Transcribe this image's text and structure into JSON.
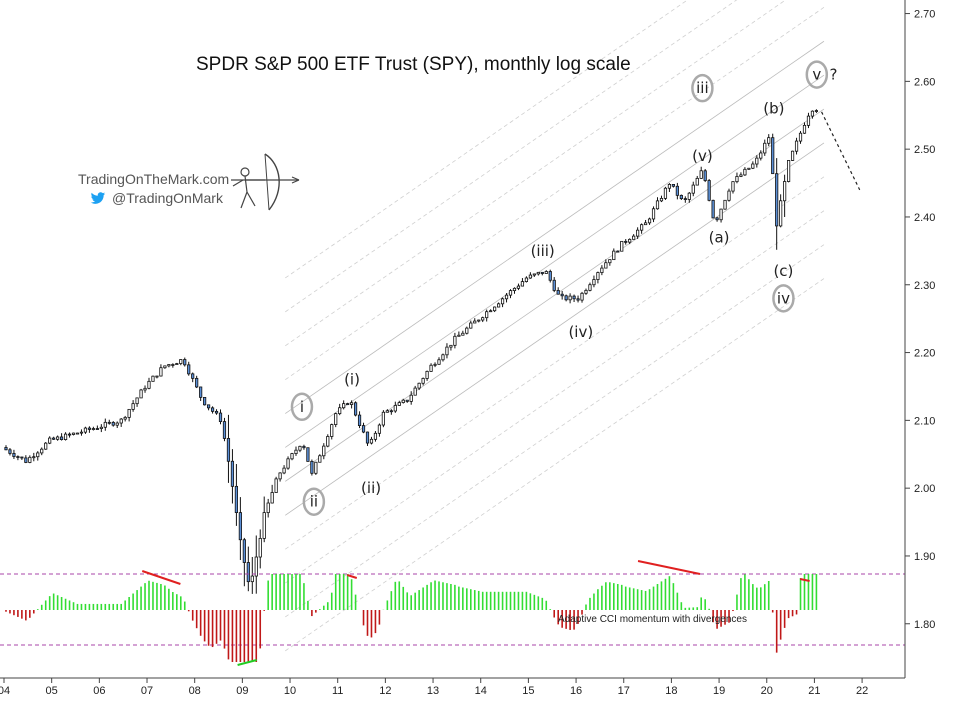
{
  "title": "SPDR S&P 500 ETF Trust (SPY), monthly log scale",
  "branding": {
    "site": "TradingOnTheMark.com",
    "twitter": "@TradingOnMark",
    "icons": [
      "archer-logo-icon",
      "twitter-bird-icon"
    ]
  },
  "colors": {
    "bull_candle": "#ffffff",
    "bear_candle": "#5b8fd6",
    "cci_positive": "#33dd33",
    "cci_negative": "#c01818",
    "divergence": "#e02020",
    "band_line": "#cccccc",
    "threshold_line": "#aa44aa"
  },
  "chart_data": {
    "type": "candlestick",
    "scale": "log",
    "y_axis_ticks": [
      "2.70",
      "2.60",
      "2.50",
      "2.40",
      "2.30",
      "2.20",
      "2.10",
      "2.00",
      "1.90",
      "1.80"
    ],
    "x_axis_ticks": [
      "04",
      "05",
      "06",
      "07",
      "08",
      "09",
      "10",
      "11",
      "12",
      "13",
      "14",
      "15",
      "16",
      "17",
      "18",
      "19",
      "20",
      "21",
      "22"
    ],
    "ylim": [
      1.72,
      2.72
    ],
    "xlim": [
      2004.0,
      2022.9
    ],
    "price_path_log10": [
      [
        2004.0,
        2.06
      ],
      [
        2004.5,
        2.04
      ],
      [
        2005.0,
        2.07
      ],
      [
        2005.5,
        2.08
      ],
      [
        2006.0,
        2.09
      ],
      [
        2006.5,
        2.1
      ],
      [
        2007.0,
        2.15
      ],
      [
        2007.4,
        2.18
      ],
      [
        2007.8,
        2.19
      ],
      [
        2008.2,
        2.13
      ],
      [
        2008.6,
        2.1
      ],
      [
        2008.8,
        2.02
      ],
      [
        2009.0,
        1.92
      ],
      [
        2009.2,
        1.85
      ],
      [
        2009.5,
        1.96
      ],
      [
        2009.8,
        2.02
      ],
      [
        2010.3,
        2.07
      ],
      [
        2010.5,
        2.02
      ],
      [
        2011.0,
        2.11
      ],
      [
        2011.3,
        2.13
      ],
      [
        2011.7,
        2.06
      ],
      [
        2012.0,
        2.11
      ],
      [
        2012.5,
        2.13
      ],
      [
        2013.0,
        2.18
      ],
      [
        2013.5,
        2.22
      ],
      [
        2014.0,
        2.25
      ],
      [
        2014.5,
        2.28
      ],
      [
        2015.0,
        2.31
      ],
      [
        2015.4,
        2.32
      ],
      [
        2015.7,
        2.28
      ],
      [
        2016.1,
        2.28
      ],
      [
        2016.5,
        2.32
      ],
      [
        2017.0,
        2.36
      ],
      [
        2017.5,
        2.39
      ],
      [
        2018.0,
        2.45
      ],
      [
        2018.3,
        2.42
      ],
      [
        2018.7,
        2.47
      ],
      [
        2018.95,
        2.39
      ],
      [
        2019.3,
        2.45
      ],
      [
        2019.8,
        2.48
      ],
      [
        2020.1,
        2.52
      ],
      [
        2020.25,
        2.39
      ],
      [
        2020.5,
        2.48
      ],
      [
        2020.9,
        2.55
      ],
      [
        2021.0,
        2.56
      ]
    ],
    "wave_labels": [
      {
        "text": "i",
        "x": 2010.25,
        "y": 2.12,
        "circled": true
      },
      {
        "text": "ii",
        "x": 2010.5,
        "y": 1.98,
        "circled": true
      },
      {
        "text": "(i)",
        "x": 2011.3,
        "y": 2.16,
        "circled": false
      },
      {
        "text": "(ii)",
        "x": 2011.7,
        "y": 2.0,
        "circled": false
      },
      {
        "text": "(iii)",
        "x": 2015.3,
        "y": 2.35,
        "circled": false
      },
      {
        "text": "(iv)",
        "x": 2016.1,
        "y": 2.23,
        "circled": false
      },
      {
        "text": "iii",
        "x": 2018.65,
        "y": 2.59,
        "circled": true
      },
      {
        "text": "(v)",
        "x": 2018.65,
        "y": 2.49,
        "circled": false
      },
      {
        "text": "(a)",
        "x": 2019.0,
        "y": 2.37,
        "circled": false
      },
      {
        "text": "(b)",
        "x": 2020.15,
        "y": 2.56,
        "circled": false
      },
      {
        "text": "(c)",
        "x": 2020.35,
        "y": 2.32,
        "circled": false
      },
      {
        "text": "iv",
        "x": 2020.35,
        "y": 2.28,
        "circled": true
      },
      {
        "text": "v",
        "x": 2021.05,
        "y": 2.61,
        "circled": true
      },
      {
        "text": "?",
        "x": 2021.4,
        "y": 2.61,
        "circled": false
      }
    ],
    "indicator": {
      "name": "Adaptive CCI momentum with divergences"
    }
  }
}
